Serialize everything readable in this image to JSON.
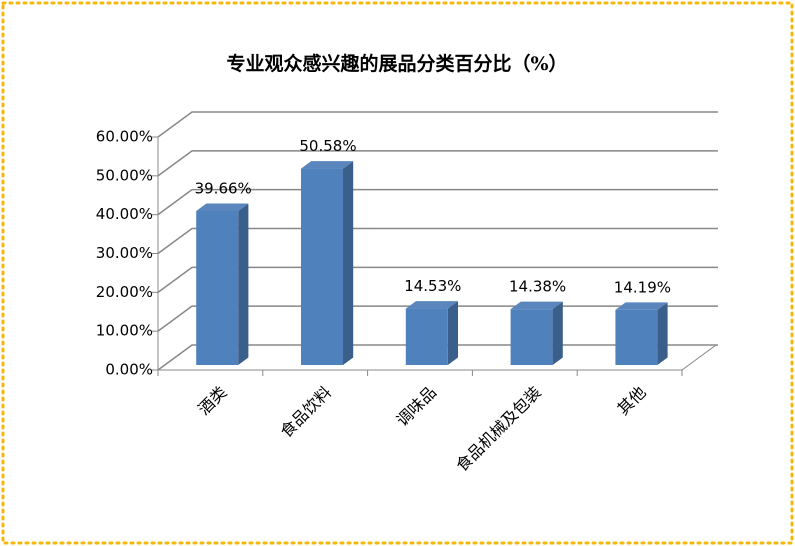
{
  "chart_data": {
    "type": "bar",
    "title": "专业观众感兴趣的展品分类百分比（%）",
    "categories": [
      "酒类",
      "食品饮料",
      "调味品",
      "食品机械及包装",
      "其他"
    ],
    "values": [
      39.66,
      50.58,
      14.53,
      14.38,
      14.19
    ],
    "value_labels": [
      "39.66%",
      "50.58%",
      "14.53%",
      "14.38%",
      "14.19%"
    ],
    "color": "#4f81bd",
    "ylim": [
      0,
      60
    ],
    "yticks": [
      {
        "value": 0,
        "label": "0.00%"
      },
      {
        "value": 10,
        "label": "10.00%"
      },
      {
        "value": 20,
        "label": "20.00%"
      },
      {
        "value": 30,
        "label": "30.00%"
      },
      {
        "value": 40,
        "label": "40.00%"
      },
      {
        "value": 50,
        "label": "50.00%"
      },
      {
        "value": 60,
        "label": "60.00%"
      }
    ],
    "grid": true
  }
}
